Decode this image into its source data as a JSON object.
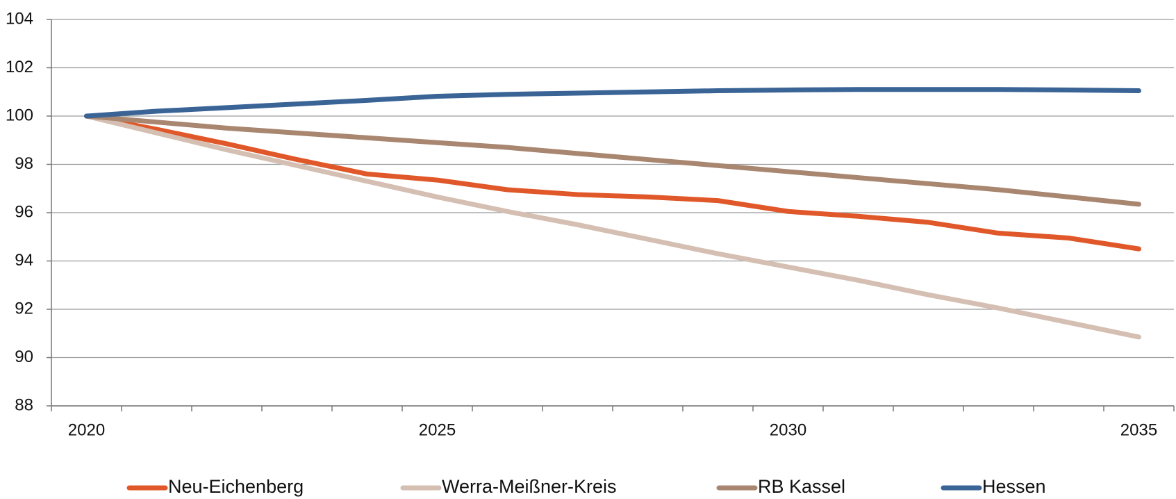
{
  "chart_data": {
    "type": "line",
    "categories": [
      "2020",
      null,
      null,
      null,
      null,
      "2025",
      null,
      null,
      null,
      null,
      "2030",
      null,
      null,
      null,
      null,
      "2035"
    ],
    "series": [
      {
        "name": "Neu-Eichenberg",
        "color": "#e0582a",
        "values": [
          100,
          99.45,
          98.85,
          98.2,
          97.6,
          97.35,
          96.95,
          96.75,
          96.65,
          96.5,
          96.05,
          95.85,
          95.6,
          95.15,
          94.95,
          94.5
        ]
      },
      {
        "name": "Werra-Meißner-Kreis",
        "color": "#d4bfb2",
        "values": [
          100,
          99.3,
          98.6,
          97.95,
          97.3,
          96.65,
          96.05,
          95.5,
          94.9,
          94.3,
          93.75,
          93.2,
          92.6,
          92.05,
          91.45,
          90.85
        ]
      },
      {
        "name": "RB Kassel",
        "color": "#a88670",
        "values": [
          100,
          99.75,
          99.5,
          99.3,
          99.1,
          98.9,
          98.7,
          98.45,
          98.2,
          97.95,
          97.7,
          97.45,
          97.2,
          96.95,
          96.65,
          96.35
        ]
      },
      {
        "name": "Hessen",
        "color": "#3a6496",
        "values": [
          100,
          100.2,
          100.35,
          100.5,
          100.65,
          100.82,
          100.9,
          100.95,
          101.0,
          101.05,
          101.08,
          101.1,
          101.1,
          101.1,
          101.08,
          101.05
        ]
      }
    ],
    "ylim": [
      88,
      104
    ],
    "yticks": [
      88,
      90,
      92,
      94,
      96,
      98,
      100,
      102,
      104
    ],
    "grid": true,
    "legend": "bottom"
  }
}
